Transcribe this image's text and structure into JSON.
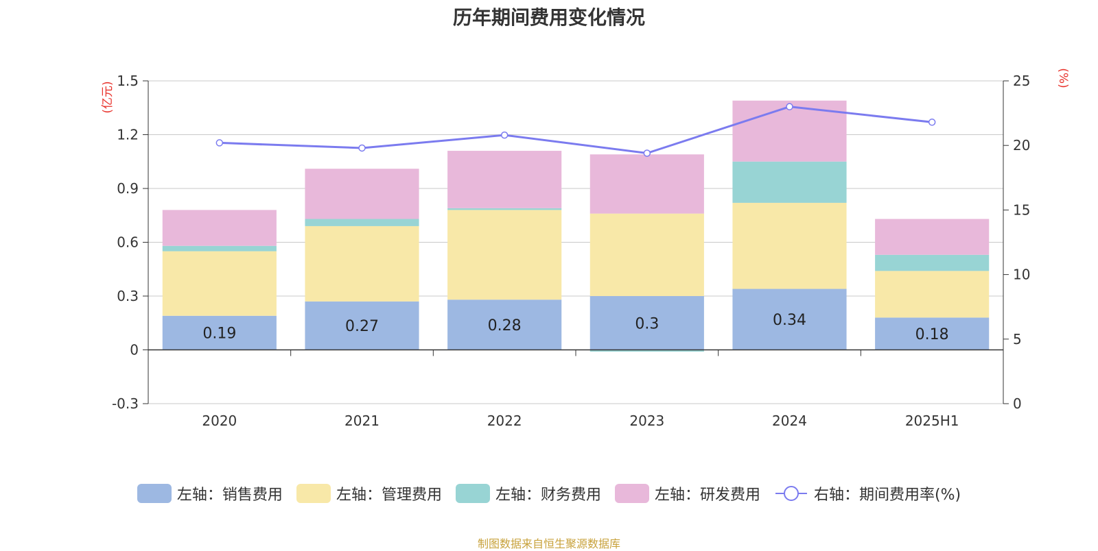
{
  "chart_data": {
    "type": "bar",
    "title": "历年期间费用变化情况",
    "categories": [
      "2020",
      "2021",
      "2022",
      "2023",
      "2024",
      "2025H1"
    ],
    "stacked": true,
    "series": [
      {
        "name": "左轴：销售费用",
        "axis": "left",
        "color": "#9db8e2",
        "values": [
          0.19,
          0.27,
          0.28,
          0.3,
          0.34,
          0.18
        ],
        "data_labels": [
          "0.19",
          "0.27",
          "0.28",
          "0.3",
          "0.34",
          "0.18"
        ]
      },
      {
        "name": "左轴：管理费用",
        "axis": "left",
        "color": "#f8e8a8",
        "values": [
          0.36,
          0.42,
          0.5,
          0.46,
          0.48,
          0.26
        ]
      },
      {
        "name": "左轴：财务费用",
        "axis": "left",
        "color": "#98d4d4",
        "values": [
          0.03,
          0.04,
          0.01,
          -0.01,
          0.23,
          0.09
        ]
      },
      {
        "name": "左轴：研发费用",
        "axis": "left",
        "color": "#e8b8da",
        "values": [
          0.2,
          0.28,
          0.32,
          0.33,
          0.34,
          0.2
        ]
      }
    ],
    "line_series": {
      "name": "右轴：期间费用率(%)",
      "axis": "right",
      "type": "line",
      "color": "#7b7bef",
      "values": [
        20.2,
        19.8,
        20.8,
        19.4,
        23.0,
        21.8
      ]
    },
    "left_axis": {
      "unit": "(亿元)",
      "ylim": [
        -0.3,
        1.5
      ],
      "ticks": [
        -0.3,
        0,
        0.3,
        0.6,
        0.9,
        1.2,
        1.5
      ],
      "tick_labels": [
        "-0.3",
        "0",
        "0.3",
        "0.6",
        "0.9",
        "1.2",
        "1.5"
      ]
    },
    "right_axis": {
      "unit": "(%)",
      "ylim": [
        0,
        25
      ],
      "ticks": [
        0,
        5,
        10,
        15,
        20,
        25
      ],
      "tick_labels": [
        "0",
        "5",
        "10",
        "15",
        "20",
        "25"
      ]
    },
    "grid": true,
    "legend_position": "bottom"
  },
  "source_note": "制图数据来自恒生聚源数据库"
}
